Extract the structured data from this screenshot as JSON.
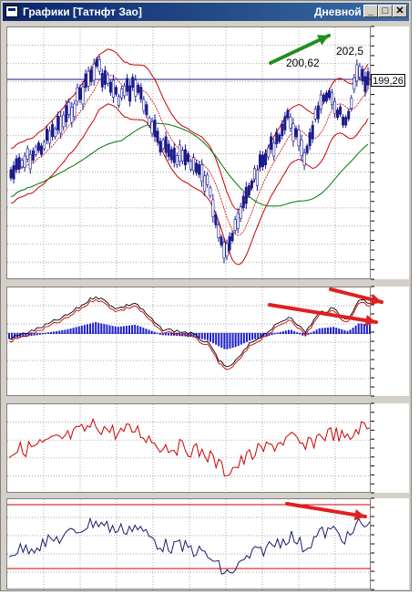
{
  "window": {
    "title": "Графики [Татнфт Зао]",
    "period": "Дневной",
    "minimize_glyph": "_",
    "maximize_glyph": "□",
    "close_glyph": "✕"
  },
  "price_labels": {
    "last": "199,26",
    "peak_prev": "200,62",
    "peak_new": "202,5"
  },
  "colors": {
    "candles": "#1a1a8c",
    "bands": "#cc0000",
    "ma": "#007700",
    "arrow_green": "#1f8f1f",
    "arrow_red": "#e02020"
  },
  "icons": [
    "window-icon",
    "minimize-icon",
    "maximize-icon",
    "close-icon"
  ]
}
